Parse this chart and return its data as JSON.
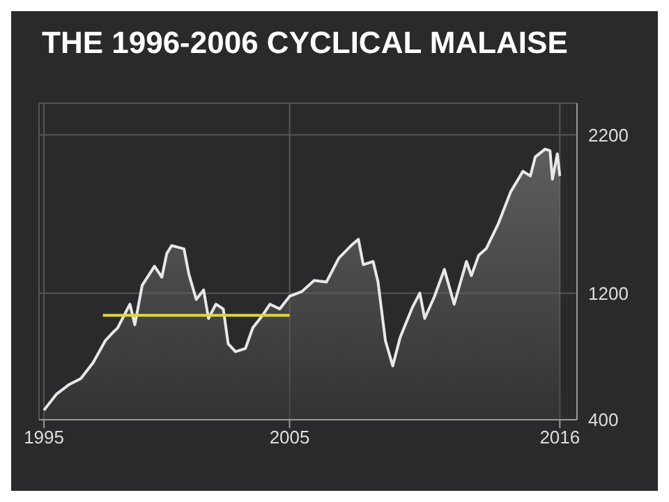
{
  "chart_data": {
    "type": "area",
    "title": "THE 1996-2006 CYCLICAL MALAISE",
    "xlim": [
      1994.8,
      2016.7
    ],
    "xticks": [
      1995,
      2005,
      2016
    ],
    "ylim": [
      400,
      2400
    ],
    "yticks": [
      400,
      1200,
      2200
    ],
    "grid": true,
    "legend": false,
    "series": [
      {
        "color": "#e8e8e8",
        "x": [
          1995.0,
          1995.5,
          1996.0,
          1996.5,
          1997.0,
          1997.5,
          1997.8,
          1998.0,
          1998.5,
          1998.7,
          1999.0,
          1999.5,
          1999.8,
          2000.0,
          2000.2,
          2000.7,
          2000.9,
          2001.2,
          2001.5,
          2001.7,
          2002.0,
          2002.3,
          2002.5,
          2002.8,
          2003.2,
          2003.5,
          2003.9,
          2004.2,
          2004.6,
          2005.0,
          2005.5,
          2006.0,
          2006.5,
          2007.0,
          2007.5,
          2007.8,
          2008.0,
          2008.4,
          2008.6,
          2008.9,
          2009.2,
          2009.5,
          2010.0,
          2010.3,
          2010.5,
          2010.9,
          2011.3,
          2011.7,
          2012.2,
          2012.4,
          2012.7,
          2013.0,
          2013.5,
          2014.0,
          2014.5,
          2014.8,
          2015.0,
          2015.4,
          2015.6,
          2015.7,
          2015.9,
          2016.0
        ],
        "values": [
          460,
          560,
          620,
          660,
          760,
          900,
          950,
          980,
          1130,
          1000,
          1250,
          1370,
          1300,
          1450,
          1500,
          1480,
          1320,
          1160,
          1220,
          1040,
          1130,
          1100,
          880,
          830,
          850,
          980,
          1060,
          1130,
          1100,
          1180,
          1210,
          1280,
          1270,
          1420,
          1500,
          1540,
          1380,
          1400,
          1270,
          900,
          740,
          920,
          1110,
          1200,
          1040,
          1180,
          1350,
          1130,
          1400,
          1310,
          1440,
          1480,
          1640,
          1840,
          1970,
          1940,
          2060,
          2110,
          2100,
          1920,
          2080,
          1940
        ]
      },
      {
        "type": "line",
        "color": "#e5d53a",
        "x": [
          1997.4,
          2005.0
        ],
        "values": [
          1060,
          1060
        ]
      }
    ]
  }
}
